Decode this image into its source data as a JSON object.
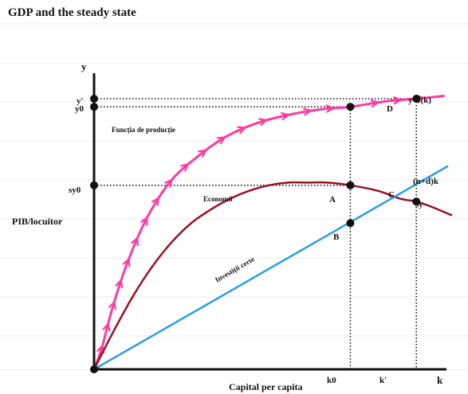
{
  "title": "GDP and the steady state",
  "chart_data": {
    "type": "line",
    "title": "GDP and the steady state",
    "xlabel": "Capital per capita",
    "ylabel": "PIB/locuitor",
    "x_axis_end_label": "k",
    "y_axis_end_label": "y",
    "x_ticks": [
      {
        "label": "k0",
        "x": 0.66
      },
      {
        "label": "k'",
        "x": 0.83
      }
    ],
    "y_ticks": [
      {
        "label": "y'",
        "y": 1.0
      },
      {
        "label": "y0",
        "y": 0.97
      },
      {
        "label": "sy0",
        "y": 0.68
      }
    ],
    "curves": [
      {
        "id": "production",
        "name": "y=f(k)",
        "annotation": "Funcția de producție",
        "color": "#ff3aa0",
        "arrows": true,
        "x": [
          0.0,
          0.02,
          0.05,
          0.09,
          0.14,
          0.2,
          0.27,
          0.34,
          0.42,
          0.5,
          0.58,
          0.66,
          0.75,
          0.83,
          0.9
        ],
        "y": [
          0.0,
          0.08,
          0.24,
          0.41,
          0.57,
          0.7,
          0.79,
          0.86,
          0.91,
          0.94,
          0.96,
          0.97,
          0.99,
          1.0,
          1.01
        ]
      },
      {
        "id": "savings",
        "name": "sy",
        "annotation": "Economii",
        "color": "#9a1020",
        "arrows": false,
        "x": [
          0.0,
          0.05,
          0.1,
          0.15,
          0.2,
          0.25,
          0.3,
          0.35,
          0.4,
          0.45,
          0.5,
          0.55,
          0.6,
          0.66,
          0.73,
          0.79,
          0.83,
          0.87,
          0.92
        ],
        "y": [
          0.0,
          0.14,
          0.27,
          0.38,
          0.47,
          0.54,
          0.59,
          0.63,
          0.66,
          0.68,
          0.69,
          0.69,
          0.69,
          0.68,
          0.66,
          0.63,
          0.62,
          0.6,
          0.57
        ]
      },
      {
        "id": "investment",
        "name": "(n+d)k",
        "annotation": "Investiții certe",
        "color": "#2a9ee6",
        "arrows": false,
        "x": [
          0.0,
          0.91
        ],
        "y": [
          0.0,
          0.75
        ]
      }
    ],
    "points": [
      {
        "label": "A",
        "x": 0.66,
        "y": 0.68
      },
      {
        "label": "B",
        "x": 0.66,
        "y": 0.54
      },
      {
        "label": "C",
        "x": 0.83,
        "y": 0.62
      },
      {
        "label": "D",
        "x": 0.83,
        "y": 1.0
      },
      {
        "label": "",
        "x": 0.66,
        "y": 0.97
      },
      {
        "label": "",
        "x": 0.0,
        "y": 1.0
      },
      {
        "label": "",
        "x": 0.0,
        "y": 0.97
      },
      {
        "label": "",
        "x": 0.0,
        "y": 0.68
      },
      {
        "label": "",
        "x": 0.0,
        "y": 0.0
      }
    ],
    "guides": [
      {
        "from": [
          0.0,
          1.0
        ],
        "to": [
          0.83,
          1.0
        ]
      },
      {
        "from": [
          0.0,
          0.97
        ],
        "to": [
          0.66,
          0.97
        ]
      },
      {
        "from": [
          0.0,
          0.68
        ],
        "to": [
          0.66,
          0.68
        ]
      },
      {
        "from": [
          0.66,
          0.97
        ],
        "to": [
          0.66,
          0.0
        ]
      },
      {
        "from": [
          0.83,
          1.0
        ],
        "to": [
          0.83,
          0.0
        ]
      }
    ],
    "xlim": [
      0,
      1
    ],
    "ylim": [
      0,
      1
    ],
    "grid": true
  }
}
